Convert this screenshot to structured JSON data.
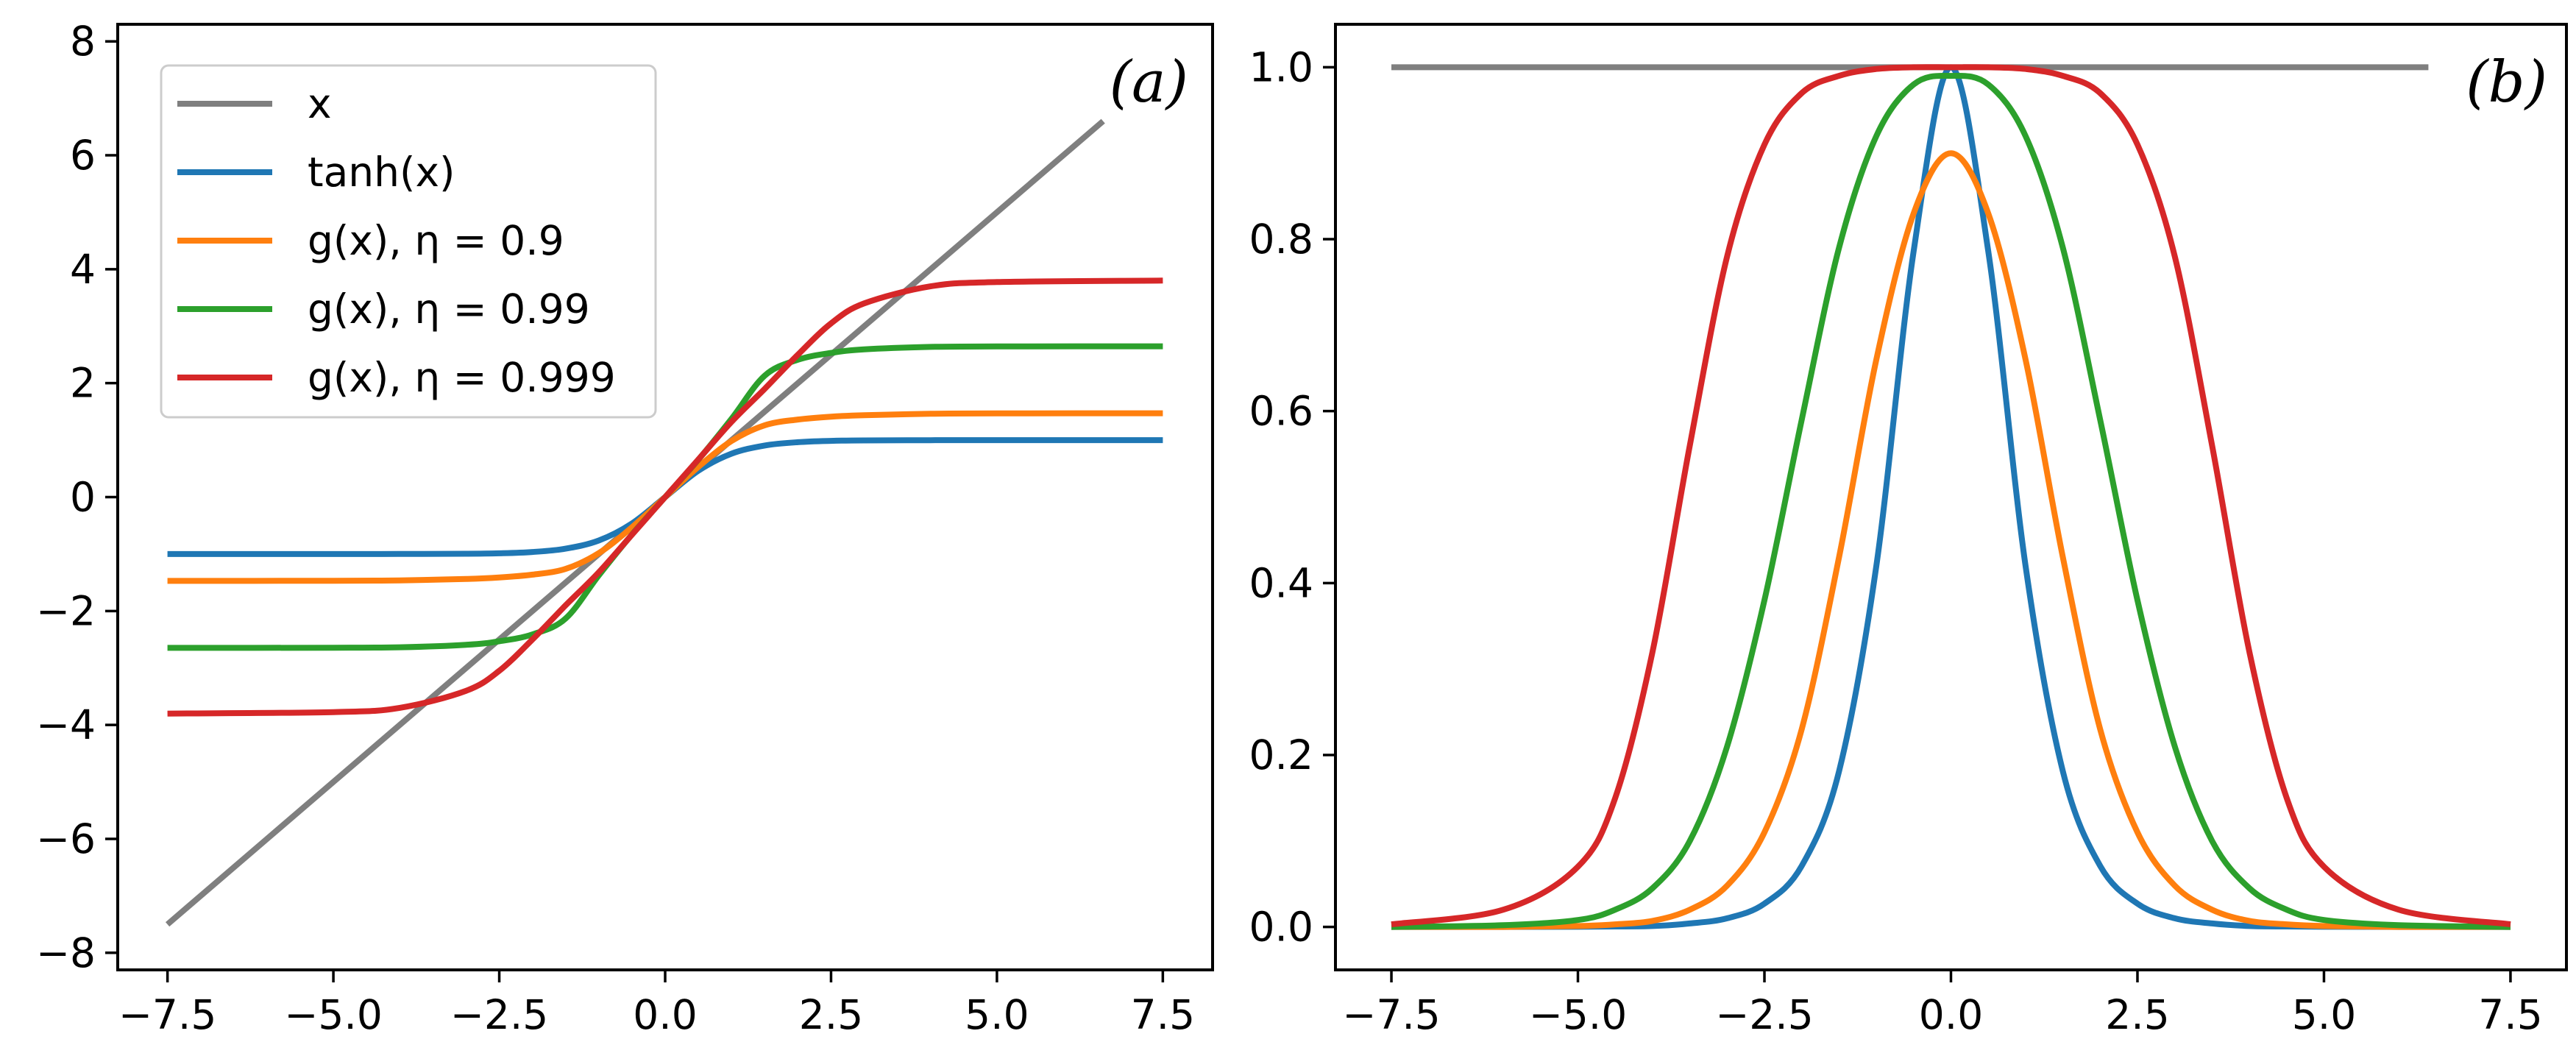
{
  "chart_data": [
    {
      "id": "a",
      "type": "line",
      "panel_label": "(a)",
      "xlim": [
        -8.25,
        8.25
      ],
      "ylim": [
        -8.3,
        8.3
      ],
      "x_ticks": [
        -7.5,
        -5.0,
        -2.5,
        0.0,
        2.5,
        5.0,
        7.5
      ],
      "x_tick_labels": [
        "−7.5",
        "−5.0",
        "−2.5",
        "0.0",
        "2.5",
        "5.0",
        "7.5"
      ],
      "y_ticks": [
        -8,
        -6,
        -4,
        -2,
        0,
        2,
        4,
        6,
        8
      ],
      "y_tick_labels": [
        "−8",
        "−6",
        "−4",
        "−2",
        "0",
        "2",
        "4",
        "6",
        "8"
      ],
      "legend_position": "upper-left",
      "x": [
        -7.5,
        -5.0,
        -4.0,
        -3.0,
        -2.5,
        -2.0,
        -1.5,
        -1.0,
        -0.5,
        0.0,
        0.5,
        1.0,
        1.5,
        2.0,
        2.5,
        3.0,
        4.0,
        5.0,
        7.5
      ],
      "series": [
        {
          "name": "x",
          "label": "x",
          "color": "#7f7f7f",
          "x": [
            -7.5,
            6.6
          ],
          "values": [
            -7.5,
            6.6
          ]
        },
        {
          "name": "tanh",
          "label": "tanh(x)",
          "color": "#1f77b4",
          "values": [
            -1.0,
            -1.0,
            -0.999,
            -0.995,
            -0.987,
            -0.964,
            -0.905,
            -0.762,
            -0.462,
            0.0,
            0.462,
            0.762,
            0.905,
            0.964,
            0.987,
            0.995,
            0.999,
            1.0,
            1.0
          ]
        },
        {
          "name": "g_0.9",
          "label": "g(x), η = 0.9",
          "color": "#ff7f0e",
          "values": [
            -1.472,
            -1.469,
            -1.462,
            -1.438,
            -1.412,
            -1.361,
            -1.261,
            -0.984,
            -0.53,
            0.0,
            0.53,
            0.984,
            1.261,
            1.361,
            1.412,
            1.438,
            1.462,
            1.469,
            1.472
          ]
        },
        {
          "name": "g_0.99",
          "label": "g(x), η = 0.99",
          "color": "#2ca02c",
          "values": [
            -2.647,
            -2.645,
            -2.636,
            -2.593,
            -2.531,
            -2.41,
            -2.132,
            -1.374,
            -0.656,
            0.0,
            0.656,
            1.374,
            2.132,
            2.41,
            2.531,
            2.593,
            2.636,
            2.645,
            2.647
          ]
        },
        {
          "name": "g_0.999",
          "label": "g(x), η = 0.999",
          "color": "#d62728",
          "values": [
            -3.8,
            -3.775,
            -3.7,
            -3.4,
            -3.05,
            -2.5,
            -1.9,
            -1.32,
            -0.66,
            0.0,
            0.66,
            1.32,
            1.9,
            2.5,
            3.05,
            3.4,
            3.7,
            3.775,
            3.8
          ]
        }
      ]
    },
    {
      "id": "b",
      "type": "line",
      "panel_label": "(b)",
      "xlim": [
        -8.25,
        8.25
      ],
      "ylim": [
        -0.05,
        1.05
      ],
      "x_ticks": [
        -7.5,
        -5.0,
        -2.5,
        0.0,
        2.5,
        5.0,
        7.5
      ],
      "x_tick_labels": [
        "−7.5",
        "−5.0",
        "−2.5",
        "0.0",
        "2.5",
        "5.0",
        "7.5"
      ],
      "y_ticks": [
        0.0,
        0.2,
        0.4,
        0.6,
        0.8,
        1.0
      ],
      "y_tick_labels": [
        "0.0",
        "0.2",
        "0.4",
        "0.6",
        "0.8",
        "1.0"
      ],
      "x": [
        -7.5,
        -6.0,
        -5.0,
        -4.5,
        -4.0,
        -3.5,
        -3.0,
        -2.5,
        -2.0,
        -1.5,
        -1.0,
        -0.5,
        0.0,
        0.5,
        1.0,
        1.5,
        2.0,
        2.5,
        3.0,
        3.5,
        4.0,
        4.5,
        5.0,
        6.0,
        7.5
      ],
      "series": [
        {
          "name": "x",
          "color": "#7f7f7f",
          "x": [
            -7.5,
            6.4
          ],
          "values": [
            1.0,
            1.0
          ]
        },
        {
          "name": "tanh",
          "color": "#1f77b4",
          "values": [
            0.0,
            0.0,
            0.0002,
            0.0005,
            0.001,
            0.004,
            0.01,
            0.027,
            0.071,
            0.181,
            0.42,
            0.786,
            1.0,
            0.786,
            0.42,
            0.181,
            0.071,
            0.027,
            0.01,
            0.004,
            0.001,
            0.0005,
            0.0002,
            0.0,
            0.0
          ]
        },
        {
          "name": "g_0.9",
          "color": "#ff7f0e",
          "values": [
            0.0,
            0.0,
            0.001,
            0.003,
            0.007,
            0.02,
            0.048,
            0.11,
            0.23,
            0.43,
            0.66,
            0.83,
            0.9,
            0.83,
            0.66,
            0.43,
            0.23,
            0.11,
            0.048,
            0.02,
            0.007,
            0.003,
            0.001,
            0.0,
            0.0
          ]
        },
        {
          "name": "g_0.99",
          "color": "#2ca02c",
          "values": [
            0.0,
            0.002,
            0.008,
            0.02,
            0.045,
            0.1,
            0.21,
            0.38,
            0.59,
            0.79,
            0.92,
            0.98,
            0.99,
            0.98,
            0.92,
            0.79,
            0.59,
            0.38,
            0.21,
            0.1,
            0.045,
            0.02,
            0.008,
            0.002,
            0.0
          ]
        },
        {
          "name": "g_0.999",
          "color": "#d62728",
          "values": [
            0.003,
            0.02,
            0.07,
            0.15,
            0.32,
            0.56,
            0.78,
            0.91,
            0.97,
            0.99,
            0.998,
            1.0,
            1.0,
            1.0,
            0.998,
            0.99,
            0.97,
            0.91,
            0.78,
            0.56,
            0.32,
            0.15,
            0.07,
            0.02,
            0.003
          ]
        }
      ]
    }
  ]
}
